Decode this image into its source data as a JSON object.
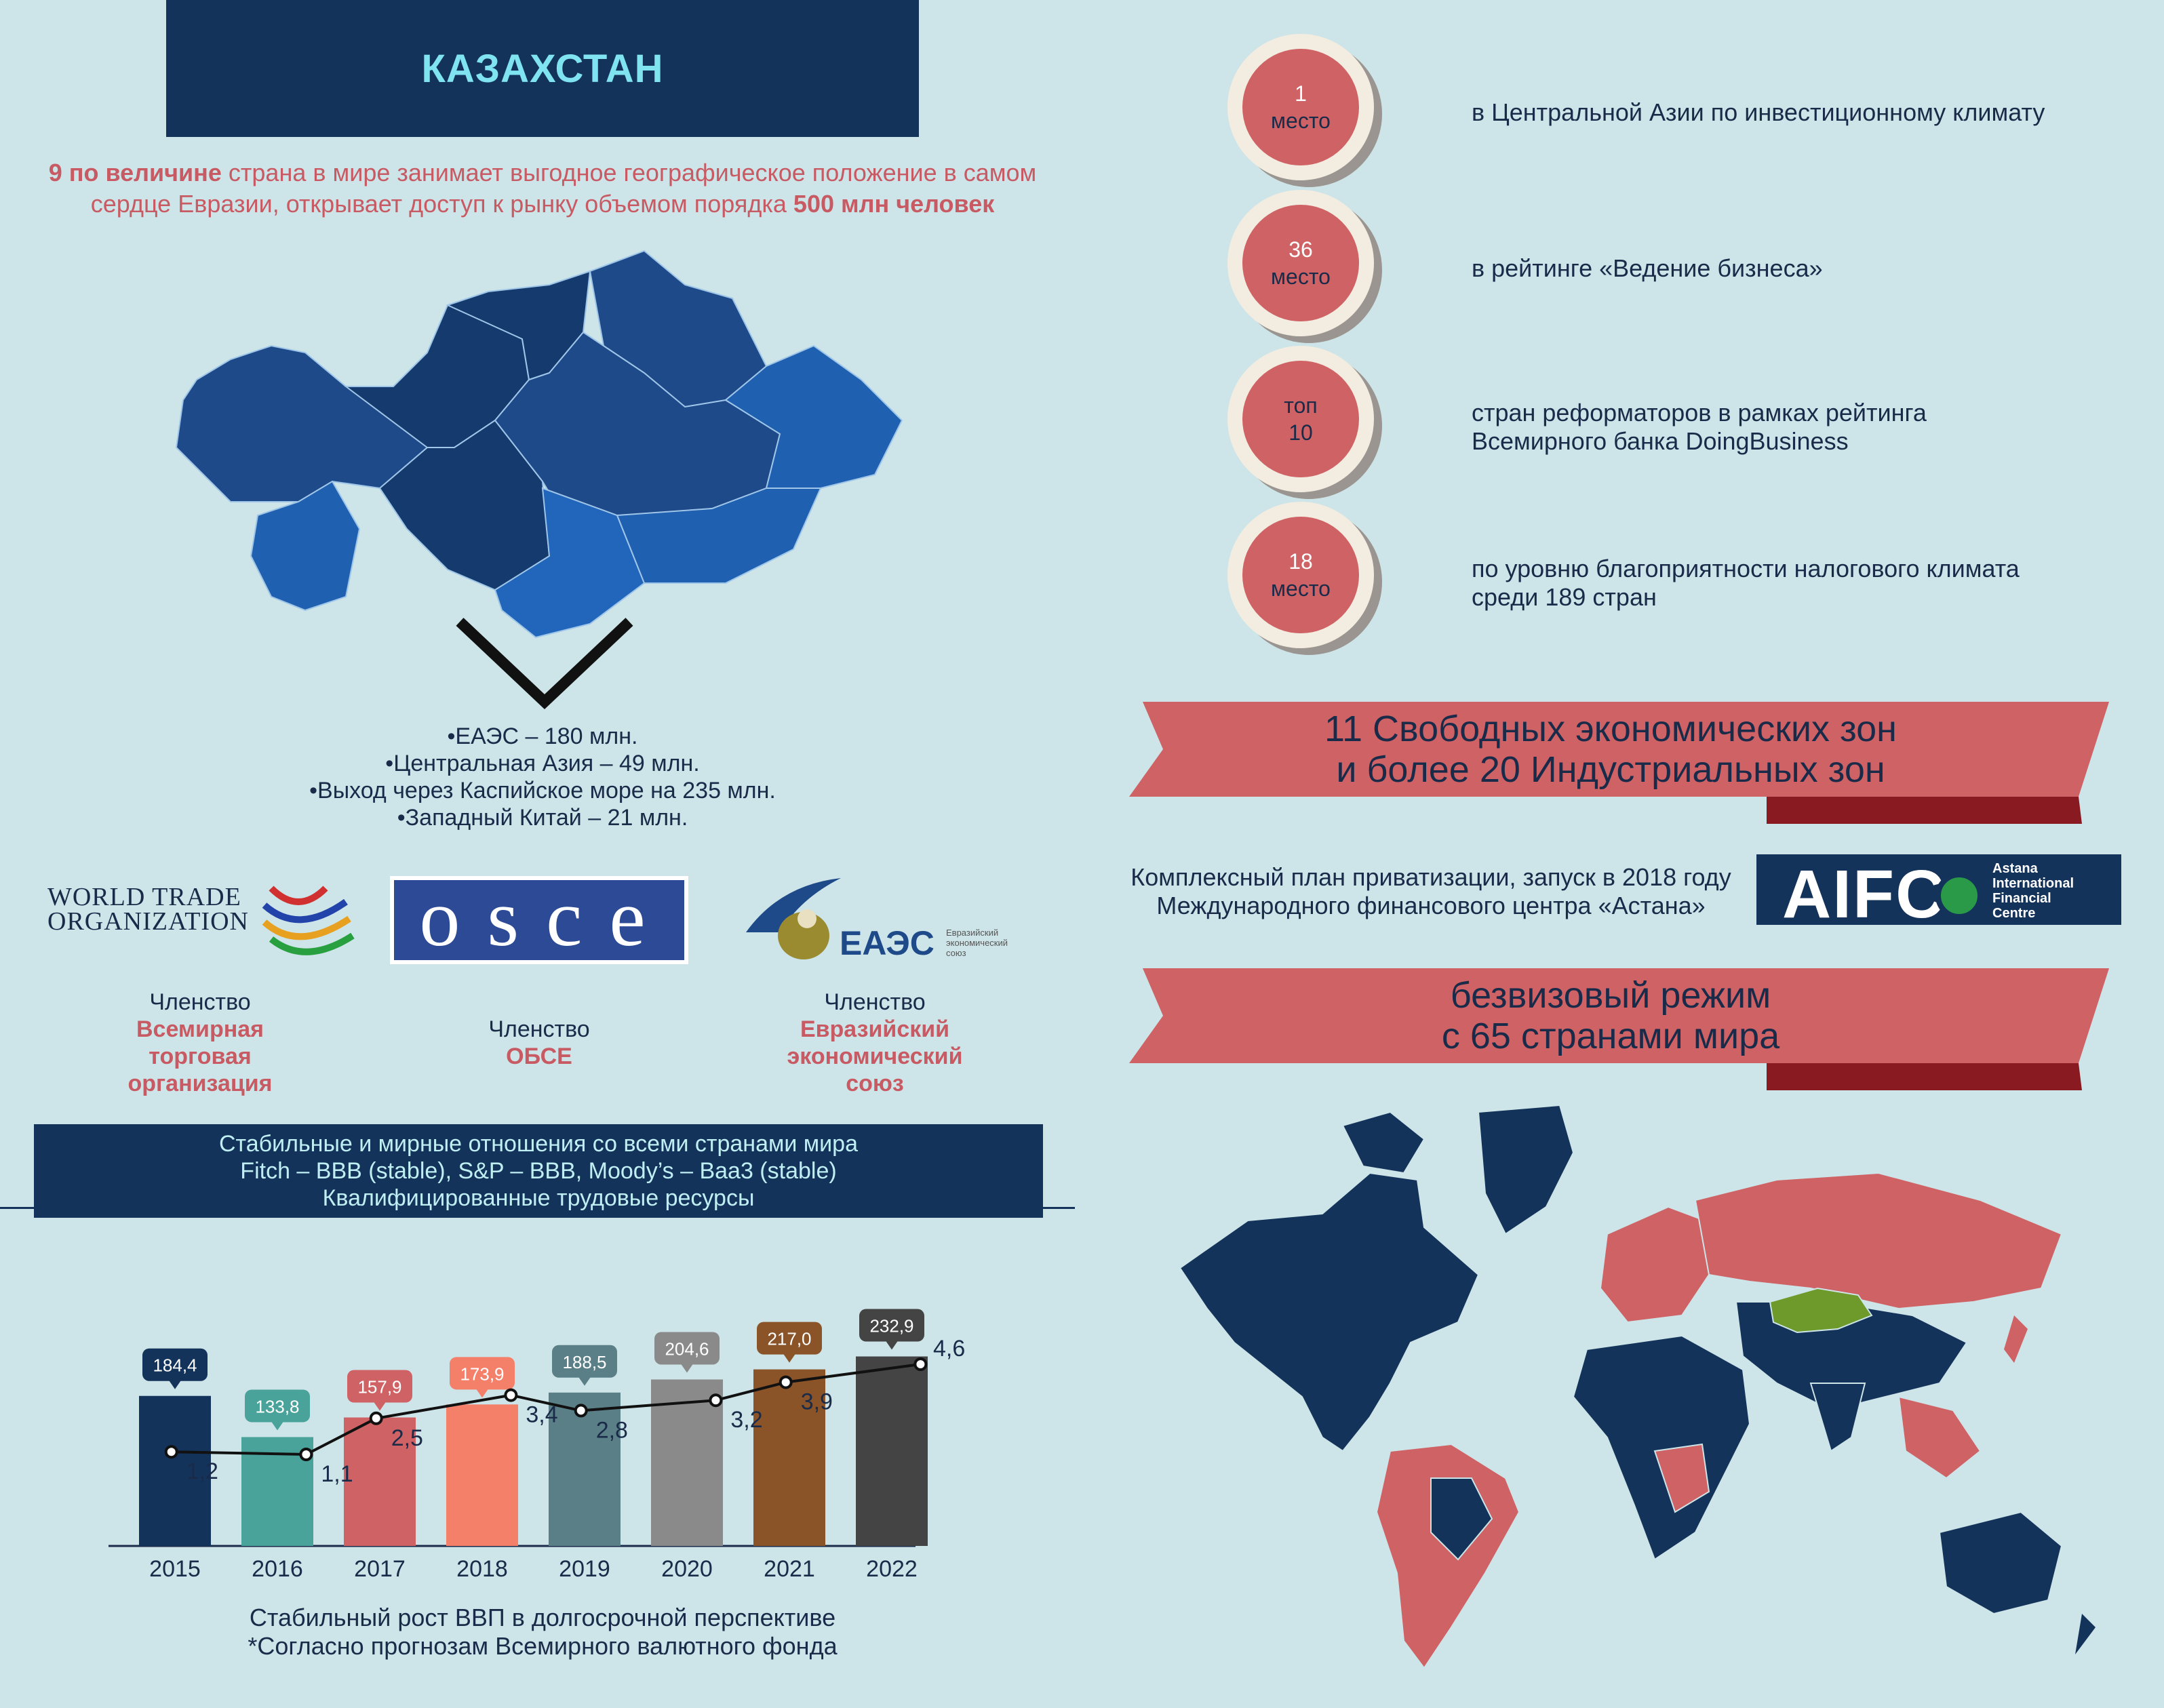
{
  "header": {
    "title": "КАЗАХСТАН"
  },
  "intro": {
    "bold1": "9 по величине",
    "text1": " страна в мире занимает выгодное географическое положение в самом сердце Евразии, открывает доступ к рынку объемом порядка ",
    "bold2": "500 млн человек"
  },
  "markets": [
    "•ЕАЭС – 180 млн.",
    "•Центральная Азия – 49 млн.",
    "•Выход через Каспийское море на 235 млн.",
    "•Западный Китай – 21 млн."
  ],
  "logos": {
    "wto_line1": "World Trade",
    "wto_line2": "Organization",
    "osce": "osce",
    "eaes_big": "ЕАЭС",
    "eaes_small1": "Евразийский",
    "eaes_small2": "экономический",
    "eaes_small3": "союз"
  },
  "memberships": [
    {
      "label": "Членство",
      "name_lines": [
        "Всемирная",
        "торговая",
        "организация"
      ]
    },
    {
      "label": "Членство",
      "name_lines": [
        "ОБСЕ"
      ]
    },
    {
      "label": "Членство",
      "name_lines": [
        "Евразийский",
        "экономический",
        "союз"
      ]
    }
  ],
  "stable": [
    "Стабильные и мирные отношения со всеми странами мира",
    "Fitch – BBB (stable), S&P – BBB, Moody’s – Baa3 (stable)",
    "Квалифицированные трудовые ресурсы"
  ],
  "ranks": [
    {
      "num": "1",
      "cap": "место",
      "text": [
        "в Центральной Азии по инвестиционному климату"
      ]
    },
    {
      "num": "36",
      "cap": "место",
      "text": [
        "в рейтинге «Ведение бизнеса»"
      ]
    },
    {
      "num": "топ",
      "cap": "10",
      "text": [
        "стран реформаторов в рамках рейтинга",
        "Всемирного банка DoingBusiness"
      ]
    },
    {
      "num": "18",
      "cap": "место",
      "text": [
        "по уровню благоприятности налогового климата",
        "среди 189 стран"
      ]
    }
  ],
  "banners": {
    "sez": [
      "11 Свободных экономических зон",
      "и более 20 Индустриальных зон"
    ],
    "visa": [
      "безвизовый режим",
      "с 65 странами мира"
    ]
  },
  "aifc": {
    "caption": [
      "Комплексный план приватизации, запуск в 2018 году",
      "Международного финансового центра «Астана»"
    ],
    "logo_letters": "AIFC",
    "logo_lines": [
      "Astana",
      "International",
      "Financial",
      "Centre"
    ]
  },
  "colors": {
    "navy": "#14335a",
    "red": "#cf6265",
    "background": "#cde5e8",
    "kz_green": "#6e9a2c"
  },
  "chart_data": {
    "type": "bar",
    "categories": [
      "2015",
      "2016",
      "2017",
      "2018",
      "2019",
      "2020",
      "2021",
      "2022"
    ],
    "series": [
      {
        "values": [
          184.4,
          133.8,
          157.9,
          173.9,
          188.5,
          204.6,
          217.0,
          232.9
        ]
      },
      {
        "values": [
          1.2,
          1.1,
          2.5,
          3.4,
          2.8,
          3.2,
          3.9,
          4.6
        ]
      }
    ],
    "bar_labels": [
      "184,4",
      "133,8",
      "157,9",
      "173,9",
      "188,5",
      "204,6",
      "217,0",
      "232,9"
    ],
    "line_labels": [
      "1,2",
      "1,1",
      "2,5",
      "3,4",
      "2,8",
      "3,2",
      "3,9",
      "4,6"
    ],
    "bar_colors": [
      "#14335a",
      "#4aa39a",
      "#cf6265",
      "#f5806a",
      "#5a7f87",
      "#8a8a8a",
      "#8a5428",
      "#444444"
    ],
    "caption": [
      "Стабильный рост ВВП в долгосрочной перспективе",
      "*Согласно прогнозам Всемирного валютного фонда"
    ]
  }
}
